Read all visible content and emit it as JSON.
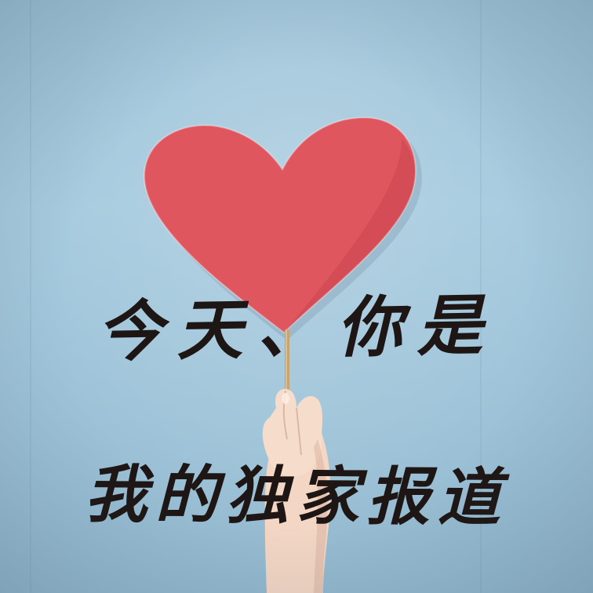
{
  "photo": {
    "caption_line_1": "今天、你是",
    "caption_line_2": "我的独家报道"
  },
  "colors": {
    "wall": "#a7cbdf",
    "heart": "#e0565e",
    "heart_shadow": "#c8434c",
    "stick": "#c9a46c",
    "skin": "#f3d6c4",
    "text": "#1e1614"
  }
}
